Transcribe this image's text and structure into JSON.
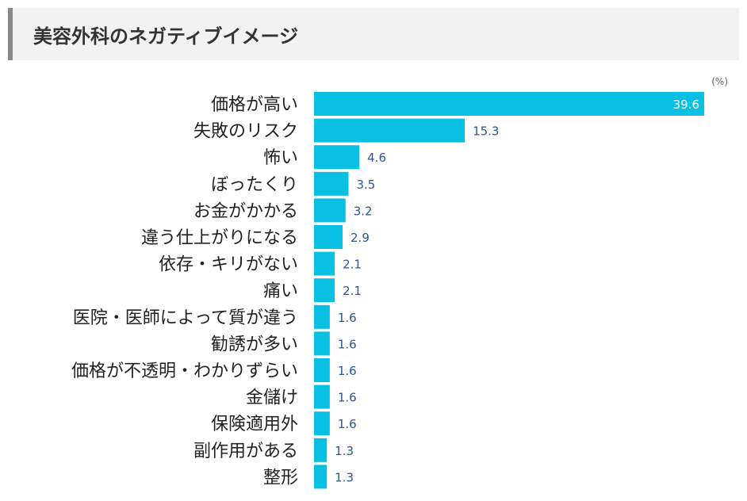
{
  "heading": {
    "title": "美容外科のネガティブイメージ"
  },
  "colors": {
    "bar": "#0ac0e2",
    "value_label_inside": "#ffffff",
    "value_label_outside": "#2b5797"
  },
  "chart_data": {
    "type": "bar",
    "orientation": "horizontal",
    "unit": "(%)",
    "xlim": [
      0,
      40
    ],
    "grid": false,
    "categories": [
      "価格が高い",
      "失敗のリスク",
      "怖い",
      "ぼったくり",
      "お金がかかる",
      "違う仕上がりになる",
      "依存・キリがない",
      "痛い",
      "医院・医師によって質が違う",
      "勧誘が多い",
      "価格が不透明・わかりずらい",
      "金儲け",
      "保険適用外",
      "副作用がある",
      "整形"
    ],
    "values": [
      39.6,
      15.3,
      4.6,
      3.5,
      3.2,
      2.9,
      2.1,
      2.1,
      1.6,
      1.6,
      1.6,
      1.6,
      1.6,
      1.3,
      1.3
    ],
    "value_labels": [
      "39.6",
      "15.3",
      "4.6",
      "3.5",
      "3.2",
      "2.9",
      "2.1",
      "2.1",
      "1.6",
      "1.6",
      "1.6",
      "1.6",
      "1.6",
      "1.3",
      "1.3"
    ]
  }
}
